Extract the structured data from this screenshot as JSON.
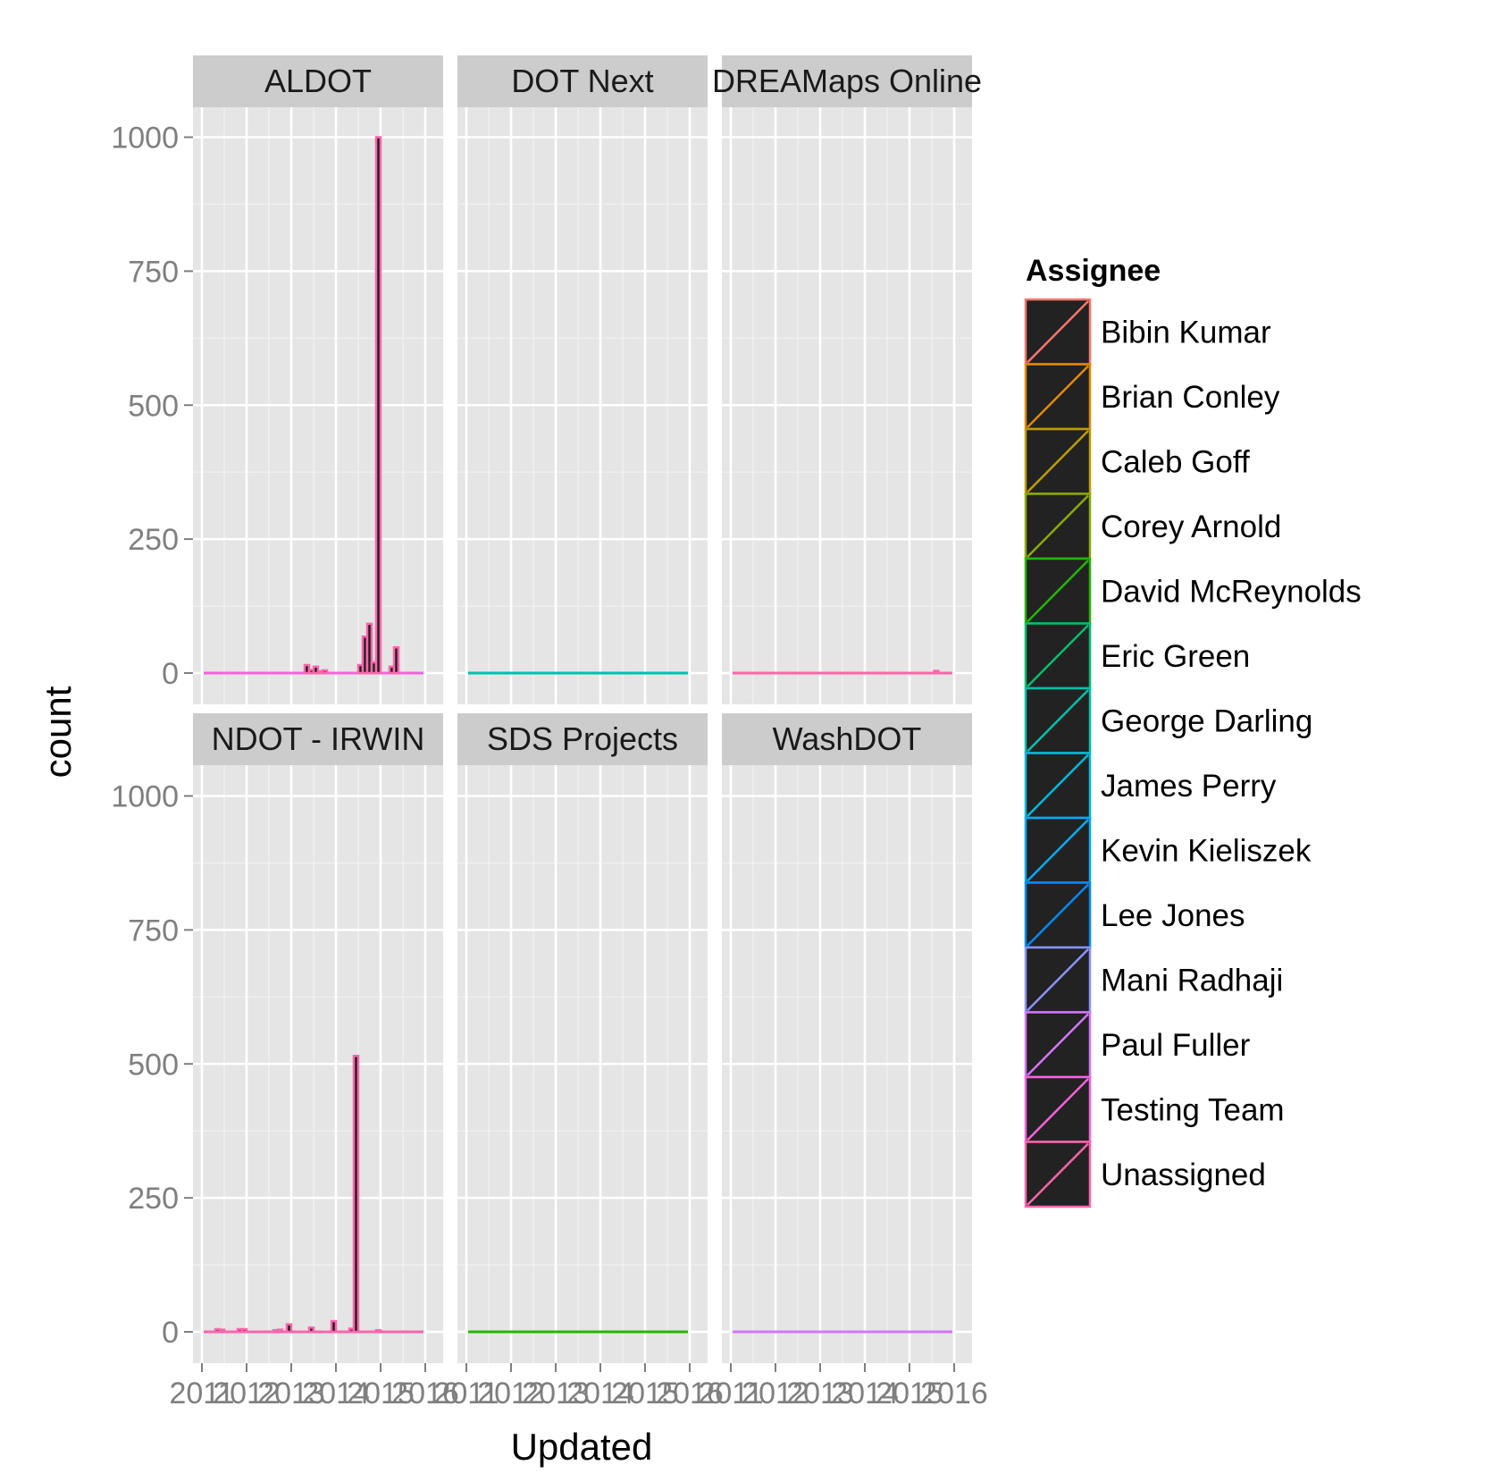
{
  "chart_data": {
    "type": "bar",
    "subtype": "faceted stacked histogram",
    "xlabel": "Updated",
    "ylabel": "count",
    "ylim": [
      0,
      1060
    ],
    "y_ticks": [
      0,
      250,
      500,
      750,
      1000
    ],
    "xlim": [
      2011.0,
      2016.0
    ],
    "x_ticks": [
      2011,
      2012,
      2013,
      2014,
      2015,
      2016
    ],
    "x_tick_labels": [
      "2011",
      "2012",
      "2013",
      "2014",
      "2015",
      "2016"
    ],
    "grid": true,
    "legend": {
      "title": "Assignee",
      "placement": "right",
      "entries": [
        {
          "name": "Bibin Kumar",
          "color": "#F8766D"
        },
        {
          "name": "Brian Conley",
          "color": "#E18A00"
        },
        {
          "name": "Caleb Goff",
          "color": "#BE9C00"
        },
        {
          "name": "Corey Arnold",
          "color": "#8CAB00"
        },
        {
          "name": "David McReynolds",
          "color": "#24B700"
        },
        {
          "name": "Eric Green",
          "color": "#00BE70"
        },
        {
          "name": "George Darling",
          "color": "#00C1AB"
        },
        {
          "name": "James Perry",
          "color": "#00BBDA"
        },
        {
          "name": "Kevin Kieliszek",
          "color": "#00ACFC"
        },
        {
          "name": "Lee Jones",
          "color": "#008CF8"
        },
        {
          "name": "Mani Radhaji",
          "color": "#8B93FF"
        },
        {
          "name": "Paul Fuller",
          "color": "#D575FE"
        },
        {
          "name": "Testing Team",
          "color": "#F962DD"
        },
        {
          "name": "Unassigned",
          "color": "#FF65AC"
        }
      ]
    },
    "facets": [
      {
        "name": "ALDOT",
        "bars": [
          {
            "x": 2013.35,
            "height": 15,
            "color": "#FF65AC",
            "series": "Unassigned"
          },
          {
            "x": 2013.45,
            "height": 6,
            "color": "#FF65AC",
            "series": "Unassigned"
          },
          {
            "x": 2013.55,
            "height": 12,
            "color": "#FF65AC",
            "series": "Unassigned"
          },
          {
            "x": 2013.65,
            "height": 3,
            "color": "#FF65AC",
            "series": "Unassigned"
          },
          {
            "x": 2013.75,
            "height": 5,
            "color": "#FF65AC",
            "series": "Unassigned"
          },
          {
            "x": 2014.55,
            "height": 15,
            "color": "#FF65AC",
            "series": "Unassigned"
          },
          {
            "x": 2014.65,
            "height": 68,
            "color": "#FF65AC",
            "series": "Unassigned"
          },
          {
            "x": 2014.75,
            "height": 92,
            "color": "#FF65AC",
            "series": "Unassigned"
          },
          {
            "x": 2014.85,
            "height": 20,
            "color": "#FF65AC",
            "series": "Unassigned"
          },
          {
            "x": 2014.95,
            "height": 1000,
            "color": "#FF65AC",
            "series": "Unassigned"
          },
          {
            "x": 2015.25,
            "height": 12,
            "color": "#FF65AC",
            "series": "Unassigned"
          },
          {
            "x": 2015.35,
            "height": 48,
            "color": "#FF65AC",
            "series": "Unassigned"
          }
        ],
        "baseline_color": "#F962DD"
      },
      {
        "name": "DOT Next",
        "bars": [],
        "baseline_color": "#00C1AB"
      },
      {
        "name": "DREAMaps Online",
        "bars": [
          {
            "x": 2015.6,
            "height": 4,
            "color": "#FF65AC",
            "series": "Unassigned"
          }
        ],
        "baseline_color": "#FF65AC"
      },
      {
        "name": "NDOT - IRWIN",
        "bars": [
          {
            "x": 2011.35,
            "height": 5,
            "color": "#FF65AC",
            "series": "Unassigned"
          },
          {
            "x": 2011.45,
            "height": 4,
            "color": "#FF65AC",
            "series": "Unassigned"
          },
          {
            "x": 2011.85,
            "height": 5,
            "color": "#FF65AC",
            "series": "Unassigned"
          },
          {
            "x": 2011.95,
            "height": 5,
            "color": "#FF65AC",
            "series": "Unassigned"
          },
          {
            "x": 2012.65,
            "height": 3,
            "color": "#FF65AC",
            "series": "Unassigned"
          },
          {
            "x": 2012.75,
            "height": 4,
            "color": "#FF65AC",
            "series": "Unassigned"
          },
          {
            "x": 2012.95,
            "height": 14,
            "color": "#FF65AC",
            "series": "Unassigned"
          },
          {
            "x": 2013.45,
            "height": 8,
            "color": "#FF65AC",
            "series": "Unassigned"
          },
          {
            "x": 2013.95,
            "height": 20,
            "color": "#FF65AC",
            "series": "Unassigned"
          },
          {
            "x": 2014.35,
            "height": 6,
            "color": "#FF65AC",
            "series": "Unassigned"
          },
          {
            "x": 2014.45,
            "height": 515,
            "color": "#FF65AC",
            "series": "Unassigned"
          },
          {
            "x": 2014.95,
            "height": 3,
            "color": "#FF65AC",
            "series": "Unassigned"
          }
        ],
        "baseline_color": "#FF65AC"
      },
      {
        "name": "SDS Projects",
        "bars": [],
        "baseline_color": "#24B700"
      },
      {
        "name": "WashDOT",
        "bars": [],
        "baseline_color": "#D575FE"
      }
    ]
  }
}
